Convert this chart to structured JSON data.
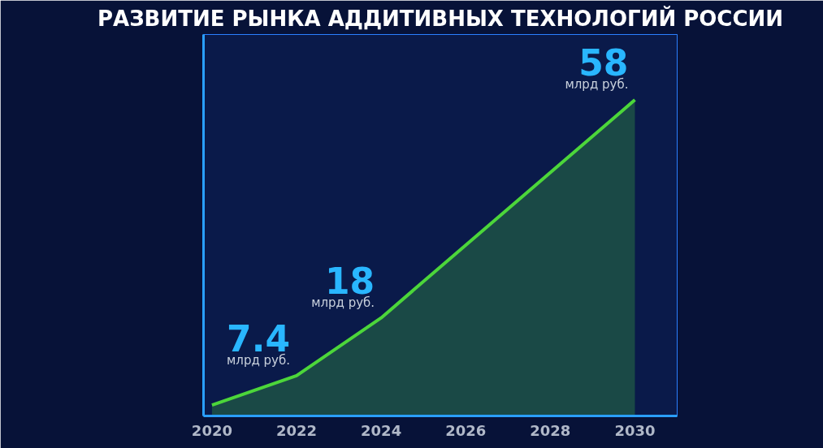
{
  "chart_data": {
    "type": "area",
    "title": "РАЗВИТИЕ РЫНКА АДДИТИВНЫХ ТЕХНОЛОГИЙ РОССИИ",
    "x": [
      2020,
      2022,
      2024,
      2030
    ],
    "series": [
      {
        "color": "#4cd63a",
        "values": [
          2,
          7.4,
          18,
          58
        ],
        "value_labels": [
          null,
          "7.4",
          "18",
          "58"
        ]
      }
    ],
    "annotations": [
      {
        "text": "млрд руб.",
        "x": 2022,
        "y": 7.4
      },
      {
        "text": "млрд руб.",
        "x": 2024,
        "y": 18
      },
      {
        "text": "млрд руб.",
        "x": 2030,
        "y": 58
      }
    ],
    "xlim": [
      2019.8,
      2031
    ],
    "xticks": [
      2020,
      2022,
      2024,
      2026,
      2028,
      2030
    ],
    "ylim": [
      0,
      70
    ],
    "tick_labels": "x",
    "grid": false
  }
}
